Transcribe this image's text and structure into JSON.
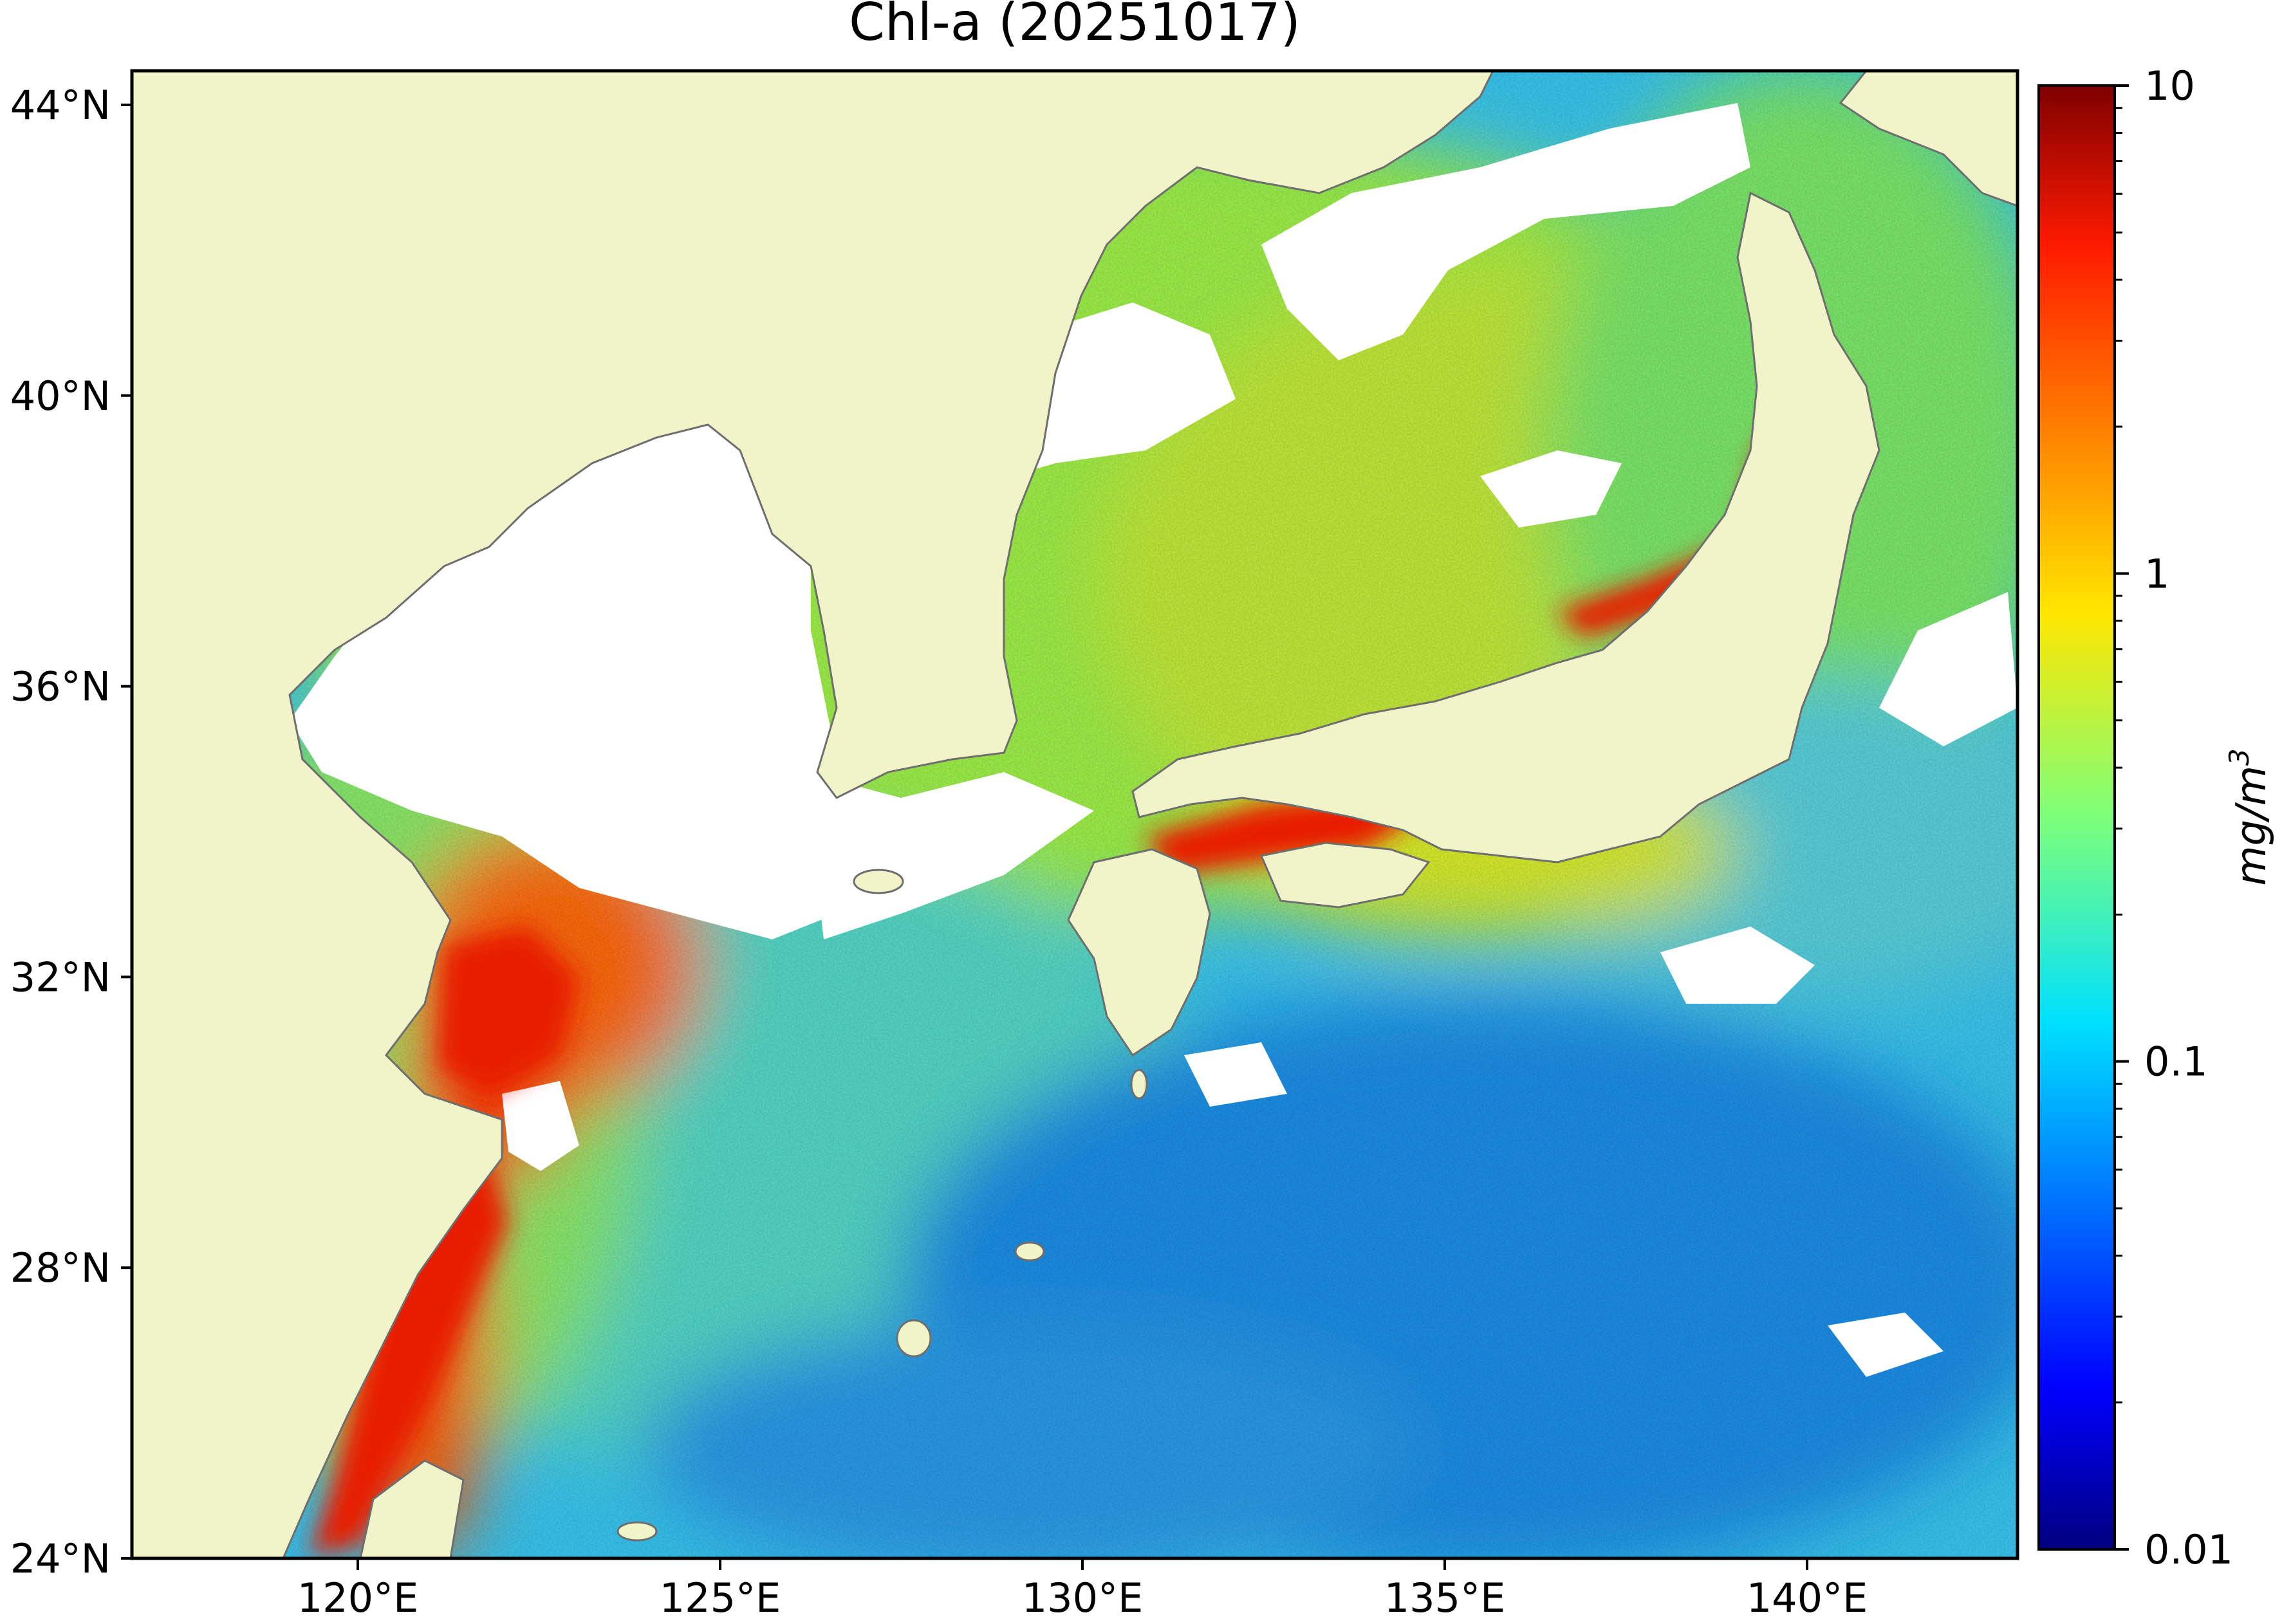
{
  "title": "Chl-a (20251017)",
  "map": {
    "lat_ticks": [
      "44°N",
      "40°N",
      "36°N",
      "32°N",
      "28°N",
      "24°N"
    ],
    "lon_ticks": [
      "120°E",
      "125°E",
      "130°E",
      "135°E",
      "140°E"
    ],
    "lon_range": [
      117,
      143
    ],
    "lat_range": [
      24,
      44.5
    ],
    "colors": {
      "land": "#f0f4c8",
      "coastline": "#6e6e6e",
      "no_data": "#ffffff",
      "frame": "#000000"
    }
  },
  "colorbar": {
    "label": "mg/m3",
    "label_base": "mg/m",
    "label_sup": "3",
    "scale": "log",
    "range": [
      0.01,
      10
    ],
    "ticks": [
      "10",
      "1",
      "0.1",
      "0.01"
    ],
    "colormap": "jet"
  }
}
